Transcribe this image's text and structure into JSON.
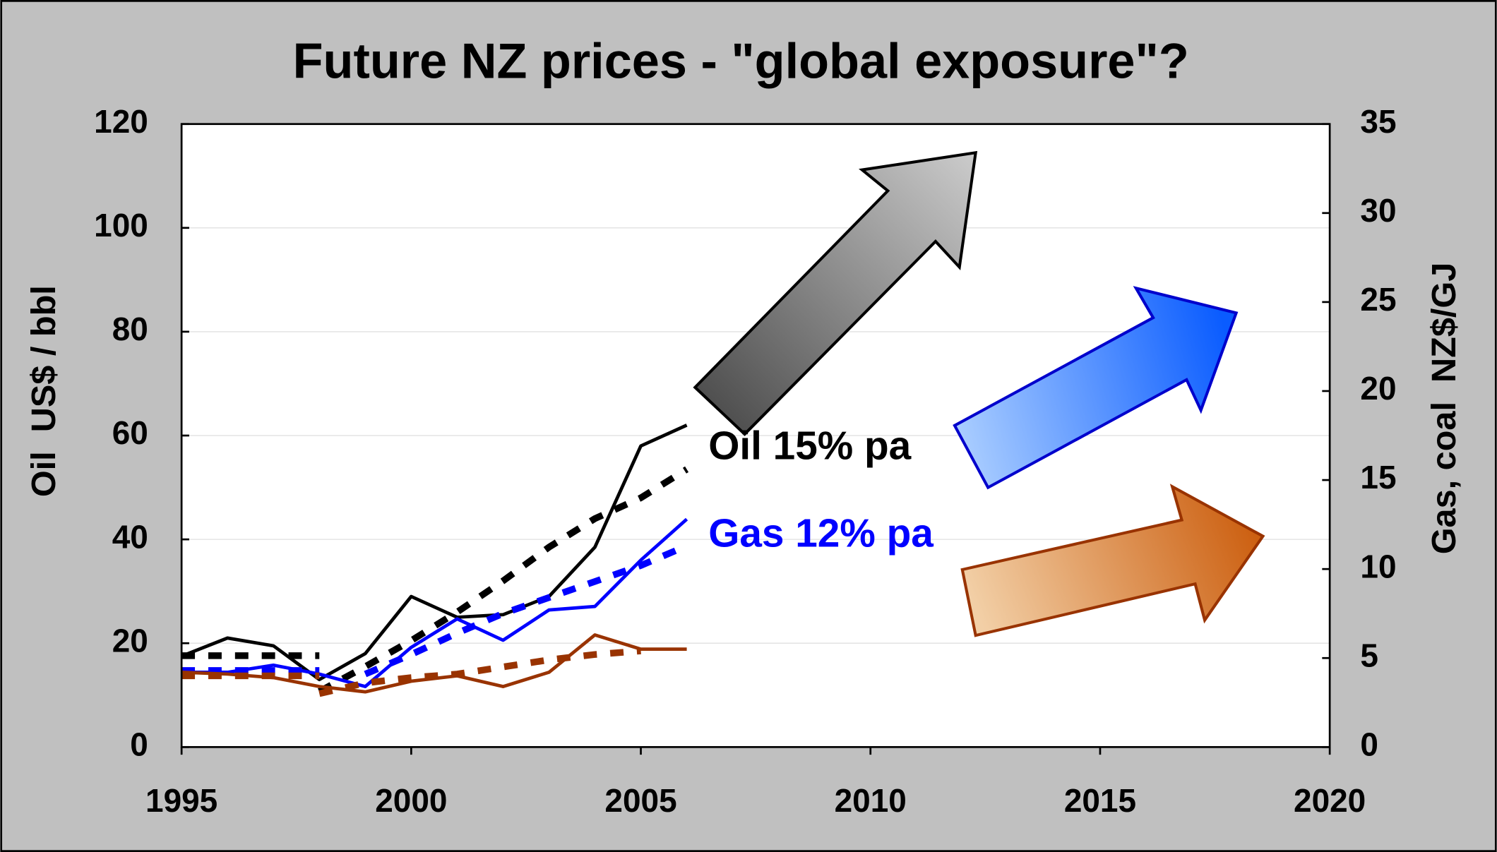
{
  "chart_data": {
    "type": "line",
    "title": "Future NZ prices - \"global exposure\"?",
    "y_label": "Oil  US$ / bbl",
    "y2_label": "Gas, coal  NZ$/GJ",
    "xlim": [
      1995,
      2020
    ],
    "xticks": [
      1995,
      2000,
      2005,
      2010,
      2015,
      2020
    ],
    "ylim": [
      0,
      120
    ],
    "yticks": [
      0,
      20,
      40,
      60,
      80,
      100,
      120
    ],
    "y2lim": [
      0,
      35
    ],
    "y2ticks": [
      0,
      5,
      10,
      15,
      20,
      25,
      30,
      35
    ],
    "grid": true,
    "annotations": [
      {
        "text": "Oil 15% pa",
        "color": "#000000"
      },
      {
        "text": "Gas 12% pa",
        "color": "#0000ff"
      }
    ],
    "series": [
      {
        "color": "#000000",
        "dash": false,
        "x": [
          1995,
          1996,
          1997,
          1998,
          1999,
          2000,
          2001,
          2002,
          2003,
          2004,
          2005,
          2006
        ],
        "values": [
          17.5,
          21,
          19.5,
          13,
          18,
          29,
          25,
          25.5,
          29,
          38.5,
          58,
          62
        ]
      },
      {
        "color": "#000000",
        "dash": true,
        "x": [
          1995,
          1998
        ],
        "values": [
          17.6,
          17.6
        ]
      },
      {
        "color": "#000000",
        "dash": true,
        "x": [
          1998,
          1999,
          2000,
          2001,
          2002,
          2003,
          2004,
          2005,
          2006
        ],
        "values": [
          10.7,
          15.5,
          20.5,
          26,
          32,
          38.5,
          44,
          48,
          53.5
        ]
      },
      {
        "color": "#0000ff",
        "dash": false,
        "axis": "y2",
        "x": [
          1995,
          1996,
          1997,
          1998,
          1999,
          2000,
          2001,
          2002,
          2003,
          2004,
          2005,
          2006
        ],
        "values": [
          4.2,
          4.2,
          4.6,
          4.1,
          3.4,
          5.6,
          7.2,
          6.0,
          7.7,
          7.9,
          10.5,
          12.8
        ]
      },
      {
        "color": "#0000ff",
        "dash": true,
        "axis": "y2",
        "x": [
          1995,
          1998
        ],
        "values": [
          4.3,
          4.3
        ]
      },
      {
        "color": "#0000ff",
        "dash": true,
        "axis": "y2",
        "x": [
          1999,
          2000,
          2001,
          2002,
          2003,
          2004,
          2005,
          2006
        ],
        "values": [
          4.1,
          5.2,
          6.4,
          7.5,
          8.4,
          9.3,
          10.2,
          11.3
        ]
      },
      {
        "color": "#993300",
        "dash": false,
        "axis": "y2",
        "x": [
          1995,
          1996,
          1997,
          1998,
          1999,
          2000,
          2001,
          2002,
          2003,
          2004,
          2005,
          2006
        ],
        "values": [
          4.2,
          4.1,
          3.9,
          3.4,
          3.1,
          3.7,
          4.0,
          3.4,
          4.2,
          6.3,
          5.5,
          5.5
        ]
      },
      {
        "color": "#993300",
        "dash": true,
        "axis": "y2",
        "x": [
          1995,
          1998
        ],
        "values": [
          4.0,
          4.0
        ]
      },
      {
        "color": "#993300",
        "dash": true,
        "axis": "y2",
        "x": [
          1998,
          1999,
          2000,
          2001,
          2002,
          2003,
          2004,
          2005
        ],
        "values": [
          3.0,
          3.6,
          3.9,
          4.1,
          4.5,
          4.9,
          5.2,
          5.4
        ]
      }
    ]
  }
}
